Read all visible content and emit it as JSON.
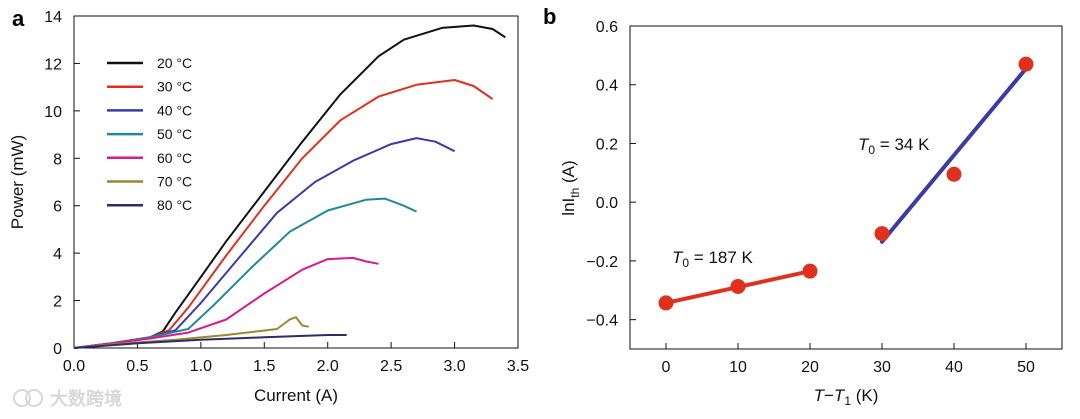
{
  "chart_data": [
    {
      "panel": "a",
      "type": "line",
      "xlabel": "Current (A)",
      "ylabel": "Power (mW)",
      "xlim": [
        0,
        3.5
      ],
      "ylim": [
        0,
        14
      ],
      "xticks": [
        "0.0",
        "0.5",
        "1.0",
        "1.5",
        "2.0",
        "2.5",
        "3.0",
        "3.5"
      ],
      "yticks": [
        "0",
        "2",
        "4",
        "6",
        "8",
        "10",
        "12",
        "14"
      ],
      "legend_position": "top-left",
      "series": [
        {
          "name": "20 °C",
          "color": "#111111",
          "points": [
            [
              0,
              0
            ],
            [
              0.3,
              0.2
            ],
            [
              0.6,
              0.45
            ],
            [
              0.7,
              0.7
            ],
            [
              0.8,
              1.5
            ],
            [
              1.0,
              3.0
            ],
            [
              1.2,
              4.5
            ],
            [
              1.5,
              6.6
            ],
            [
              1.8,
              8.7
            ],
            [
              2.1,
              10.7
            ],
            [
              2.4,
              12.3
            ],
            [
              2.6,
              13.0
            ],
            [
              2.9,
              13.5
            ],
            [
              3.15,
              13.6
            ],
            [
              3.3,
              13.45
            ],
            [
              3.4,
              13.1
            ]
          ]
        },
        {
          "name": "30 °C",
          "color": "#e0301e",
          "points": [
            [
              0,
              0
            ],
            [
              0.3,
              0.2
            ],
            [
              0.6,
              0.45
            ],
            [
              0.75,
              0.75
            ],
            [
              0.9,
              1.7
            ],
            [
              1.2,
              3.9
            ],
            [
              1.5,
              6.0
            ],
            [
              1.8,
              8.0
            ],
            [
              2.1,
              9.6
            ],
            [
              2.4,
              10.6
            ],
            [
              2.7,
              11.1
            ],
            [
              3.0,
              11.3
            ],
            [
              3.15,
              11.05
            ],
            [
              3.3,
              10.5
            ]
          ]
        },
        {
          "name": "40 °C",
          "color": "#3a3ba8",
          "points": [
            [
              0,
              0
            ],
            [
              0.3,
              0.2
            ],
            [
              0.6,
              0.45
            ],
            [
              0.8,
              0.75
            ],
            [
              1.0,
              1.9
            ],
            [
              1.3,
              3.8
            ],
            [
              1.6,
              5.7
            ],
            [
              1.9,
              7.0
            ],
            [
              2.2,
              7.9
            ],
            [
              2.5,
              8.6
            ],
            [
              2.7,
              8.85
            ],
            [
              2.85,
              8.7
            ],
            [
              3.0,
              8.3
            ]
          ]
        },
        {
          "name": "50 °C",
          "color": "#1f8a97",
          "points": [
            [
              0,
              0
            ],
            [
              0.3,
              0.2
            ],
            [
              0.6,
              0.45
            ],
            [
              0.9,
              0.8
            ],
            [
              1.1,
              1.8
            ],
            [
              1.4,
              3.4
            ],
            [
              1.7,
              4.9
            ],
            [
              2.0,
              5.8
            ],
            [
              2.3,
              6.25
            ],
            [
              2.45,
              6.3
            ],
            [
              2.6,
              6.0
            ],
            [
              2.7,
              5.75
            ]
          ]
        },
        {
          "name": "60 °C",
          "color": "#d81b8c",
          "points": [
            [
              0,
              0
            ],
            [
              0.3,
              0.2
            ],
            [
              0.6,
              0.4
            ],
            [
              0.9,
              0.65
            ],
            [
              1.2,
              1.2
            ],
            [
              1.5,
              2.3
            ],
            [
              1.8,
              3.3
            ],
            [
              2.0,
              3.75
            ],
            [
              2.2,
              3.8
            ],
            [
              2.3,
              3.65
            ],
            [
              2.4,
              3.55
            ]
          ]
        },
        {
          "name": "70 °C",
          "color": "#9c8732",
          "points": [
            [
              0,
              0
            ],
            [
              0.4,
              0.2
            ],
            [
              0.8,
              0.35
            ],
            [
              1.2,
              0.55
            ],
            [
              1.6,
              0.8
            ],
            [
              1.7,
              1.2
            ],
            [
              1.75,
              1.3
            ],
            [
              1.8,
              0.95
            ],
            [
              1.85,
              0.9
            ]
          ]
        },
        {
          "name": "80 °C",
          "color": "#2c2c66",
          "points": [
            [
              0,
              0
            ],
            [
              0.5,
              0.2
            ],
            [
              1.0,
              0.35
            ],
            [
              1.5,
              0.45
            ],
            [
              2.0,
              0.55
            ],
            [
              2.15,
              0.55
            ]
          ]
        }
      ]
    },
    {
      "panel": "b",
      "type": "scatter",
      "xlabel_parts": [
        "T",
        "−",
        "T",
        "1",
        " (K)"
      ],
      "ylabel_parts": [
        "lnI",
        "th",
        " (A)"
      ],
      "xlim": [
        -5,
        55
      ],
      "ylim": [
        -0.5,
        0.6
      ],
      "xticks": [
        "0",
        "10",
        "20",
        "30",
        "40",
        "50"
      ],
      "yticks": [
        "−0.4",
        "−0.2",
        "0.0",
        "0.2",
        "0.4",
        "0.6"
      ],
      "points": [
        [
          0,
          -0.343
        ],
        [
          10,
          -0.287
        ],
        [
          20,
          -0.235
        ],
        [
          30,
          -0.107
        ],
        [
          40,
          0.095
        ],
        [
          50,
          0.47
        ]
      ],
      "fits": [
        {
          "x": [
            0,
            20
          ],
          "y": [
            -0.343,
            -0.235
          ],
          "color": "#e0301e",
          "label_parts": [
            "T",
            "0",
            " = 187 K"
          ]
        },
        {
          "x": [
            30,
            50
          ],
          "y": [
            -0.135,
            0.455
          ],
          "color": "#3a3ba8",
          "label_parts": [
            "T",
            "0",
            " = 34 K"
          ]
        }
      ],
      "marker_color": "#e0301e"
    }
  ],
  "labels": {
    "panel_a": "a",
    "panel_b": "b"
  },
  "watermark": "大数跨境"
}
